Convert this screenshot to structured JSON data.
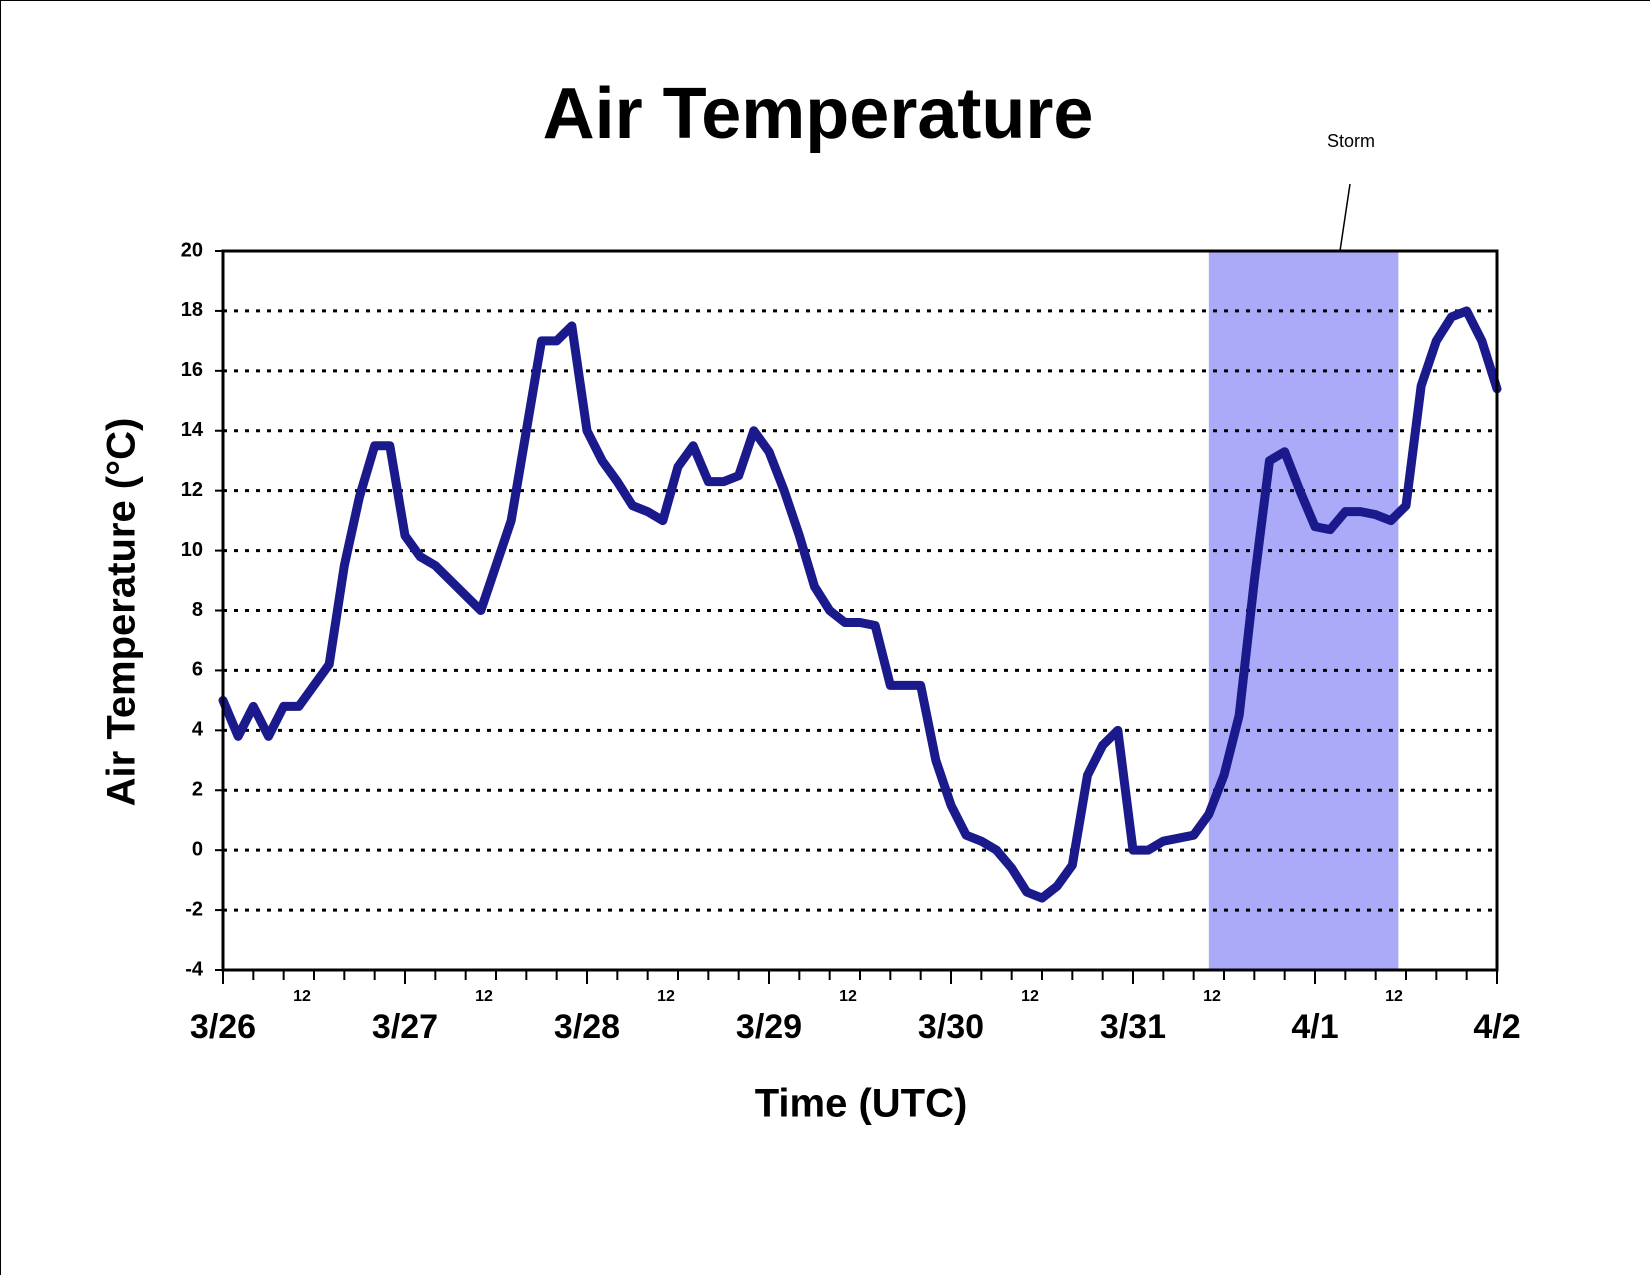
{
  "chart_data": {
    "type": "line",
    "title": "Air Temperature",
    "xlabel": "Time (UTC)",
    "ylabel": "Air Temperature (°C)",
    "annotation": "Storm",
    "shaded_span": [
      130,
      155
    ],
    "shade_color": "#aaaaf8",
    "xlim": [
      0,
      168
    ],
    "ylim": [
      -4,
      20
    ],
    "yticks": [
      -4,
      -2,
      0,
      2,
      4,
      6,
      8,
      10,
      12,
      14,
      16,
      18,
      20
    ],
    "grid": true,
    "xticks": [
      {
        "value": 0,
        "label": "3/26"
      },
      {
        "value": 24,
        "label": "3/27"
      },
      {
        "value": 48,
        "label": "3/28"
      },
      {
        "value": 72,
        "label": "3/29"
      },
      {
        "value": 96,
        "label": "3/30"
      },
      {
        "value": 120,
        "label": "3/31"
      },
      {
        "value": 144,
        "label": "4/1"
      },
      {
        "value": 168,
        "label": "4/2"
      }
    ],
    "xticks_hour": [
      12,
      {
        "value": 36,
        "label": "12"
      },
      {
        "value": 60,
        "label": "12"
      },
      {
        "value": 84,
        "label": "12"
      },
      {
        "value": 108,
        "label": "12"
      },
      {
        "value": 132,
        "label": "12"
      },
      {
        "value": 156,
        "label": "12"
      }
    ],
    "xticks_minor": [
      4,
      8,
      16,
      20,
      28,
      32,
      40,
      44,
      52,
      56,
      64,
      68,
      76,
      80,
      88,
      92,
      100,
      104,
      112,
      116,
      124,
      128,
      136,
      140,
      148,
      152,
      160,
      164
    ],
    "x": [
      0,
      2,
      4,
      6,
      8,
      10,
      12,
      14,
      16,
      18,
      20,
      22,
      24,
      26,
      28,
      30,
      32,
      34,
      36,
      38,
      40,
      42,
      44,
      46,
      48,
      50,
      52,
      54,
      56,
      58,
      60,
      62,
      64,
      66,
      68,
      70,
      72,
      74,
      76,
      78,
      80,
      82,
      84,
      86,
      88,
      90,
      92,
      94,
      96,
      98,
      100,
      102,
      104,
      106,
      108,
      110,
      112,
      114,
      116,
      118,
      120,
      122,
      124,
      126,
      128,
      130,
      132,
      134,
      136,
      138,
      140,
      142,
      144,
      146,
      148,
      150,
      152,
      154,
      156,
      158,
      160,
      162,
      164,
      166,
      168
    ],
    "series": [
      {
        "name": "Air Temperature",
        "color": "#1a1a8c",
        "values": [
          5,
          3.8,
          4.8,
          3.8,
          4.8,
          4.8,
          5.5,
          6.2,
          9.5,
          11.8,
          13.5,
          13.5,
          10.5,
          9.8,
          9.5,
          9,
          8.5,
          8,
          9.5,
          11,
          14,
          17,
          17,
          17.5,
          14,
          13,
          12.3,
          11.5,
          11.3,
          11,
          12.8,
          13.5,
          12.3,
          12.3,
          12.5,
          14,
          13.3,
          12,
          10.5,
          8.8,
          8,
          7.6,
          7.6,
          7.5,
          5.5,
          5.5,
          5.5,
          3,
          1.5,
          0.5,
          0.3,
          0,
          -0.6,
          -1.4,
          -1.6,
          -1.2,
          -0.5,
          2.5,
          3.5,
          4,
          0,
          0,
          0.3,
          0.4,
          0.5,
          1.2,
          2.5,
          4.5,
          9,
          13,
          13.3,
          12,
          10.8,
          10.7,
          11.3,
          11.3,
          11.2,
          11,
          11.5,
          15.5,
          17,
          17.8,
          18,
          17,
          15.4
        ]
      }
    ]
  }
}
